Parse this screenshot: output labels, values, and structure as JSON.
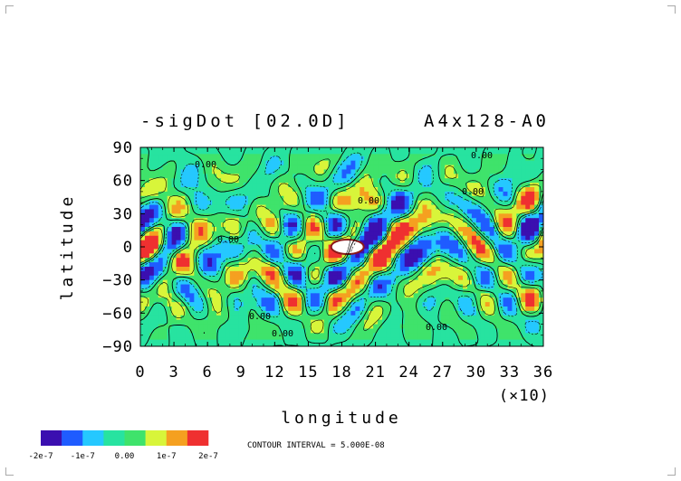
{
  "chart_data": {
    "type": "heatmap",
    "title_left": "-sigDot [02.0D]",
    "title_right": "A4x128-A0",
    "xlabel": "longitude",
    "ylabel": "latitude",
    "x_scale_note": "(×10)",
    "x_ticks": [
      "0",
      "3",
      "6",
      "9",
      "12",
      "15",
      "18",
      "21",
      "24",
      "27",
      "30",
      "33",
      "36"
    ],
    "y_ticks": [
      "90",
      "60",
      "30",
      "0",
      "−30",
      "−60",
      "−90"
    ],
    "xlim": [
      0,
      360
    ],
    "ylim": [
      -90,
      90
    ],
    "colorbar": {
      "colors": [
        "#3b0fb0",
        "#1f5cff",
        "#25c8ff",
        "#27e3a0",
        "#3fe36b",
        "#d8f53a",
        "#f5a020",
        "#ef3030"
      ],
      "labels": [
        "-2e-7",
        "-1e-7",
        "0.00",
        "1e-7",
        "2e-7"
      ],
      "levels": [
        -2e-07,
        -1.5e-07,
        -1e-07,
        -5e-08,
        0,
        5e-08,
        1e-07,
        1.5e-07,
        2e-07
      ]
    },
    "contour_interval_text": "CONTOUR INTERVAL = 5.000E-08",
    "contour_label": "0.00",
    "grid": false
  }
}
